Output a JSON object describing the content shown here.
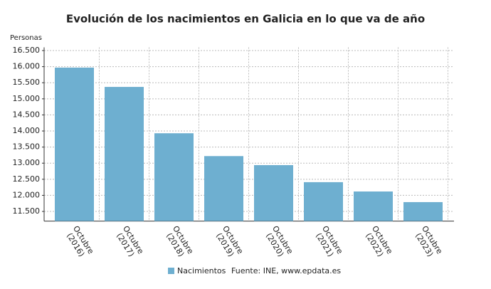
{
  "chart_data": {
    "type": "bar",
    "title": "Evolución de los nacimientos en Galicia en lo que va de año",
    "y_label": "Personas",
    "categories": [
      "Octubre\n(2016)",
      "Octubre\n(2017)",
      "Octubre\n(2018)",
      "Octubre\n(2019)",
      "Octubre\n(2020)",
      "Octubre\n(2021)",
      "Octubre\n(2022)",
      "Octubre\n(2023)"
    ],
    "series": [
      {
        "name": "Nacimientos",
        "color": "#6eafd0",
        "values": [
          15970,
          15370,
          13930,
          13220,
          12940,
          12410,
          12120,
          11790
        ]
      }
    ],
    "ylim": [
      11200,
      16600
    ],
    "yticks": [
      {
        "value": 11500,
        "label": "11.500"
      },
      {
        "value": 12000,
        "label": "12.000"
      },
      {
        "value": 12500,
        "label": "12.500"
      },
      {
        "value": 13000,
        "label": "13.000"
      },
      {
        "value": 13500,
        "label": "13.500"
      },
      {
        "value": 14000,
        "label": "14.000"
      },
      {
        "value": 14500,
        "label": "14.500"
      },
      {
        "value": 15000,
        "label": "15.000"
      },
      {
        "value": 15500,
        "label": "15.500"
      },
      {
        "value": 16000,
        "label": "16.000"
      },
      {
        "value": 16500,
        "label": "16.500"
      }
    ],
    "grid": true,
    "source": "Fuente: INE, www.epdata.es"
  }
}
